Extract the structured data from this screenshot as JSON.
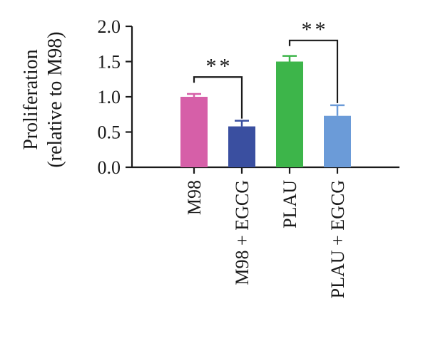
{
  "chart_data": {
    "type": "bar",
    "categories": [
      "M98",
      "M98 + EGCG",
      "PLAU",
      "PLAU + EGCG"
    ],
    "values": [
      1.0,
      0.58,
      1.5,
      0.73
    ],
    "errors": [
      0.04,
      0.08,
      0.08,
      0.15
    ],
    "colors": [
      "#d65fa8",
      "#3a4fa0",
      "#3db54a",
      "#6b9bd8"
    ],
    "ylabel_line1": "Proliferation",
    "ylabel_line2": "(relative to M98)",
    "ylim": [
      0,
      2.0
    ],
    "yticks": [
      "0.0",
      "0.5",
      "1.0",
      "1.5",
      "2.0"
    ],
    "ytick_values": [
      0,
      0.5,
      1.0,
      1.5,
      2.0
    ],
    "significance": [
      {
        "from": 0,
        "to": 1,
        "label": "**",
        "level": 1.28
      },
      {
        "from": 2,
        "to": 3,
        "label": "**",
        "level": 1.8
      }
    ],
    "grid": false
  }
}
